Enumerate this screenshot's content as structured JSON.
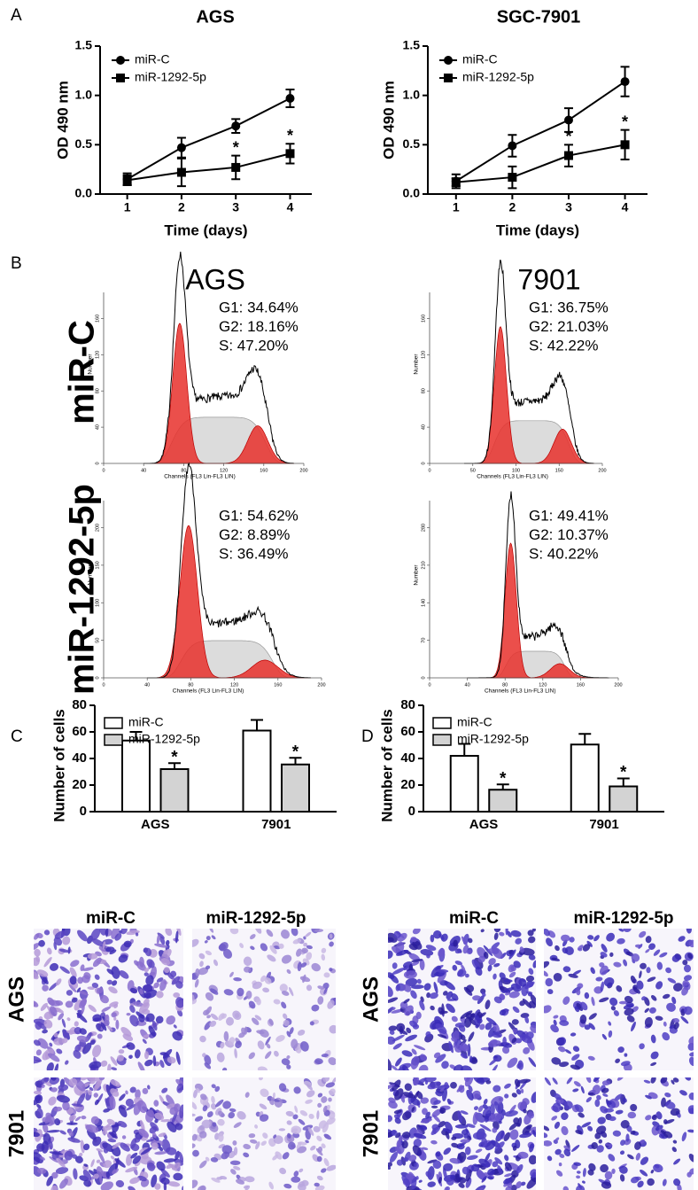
{
  "panel_labels": [
    "A",
    "B",
    "C",
    "D"
  ],
  "chart_data": [
    {
      "type": "line",
      "title": "AGS",
      "xlabel": "Time (days)",
      "ylabel": "OD 490 nm",
      "x": [
        1,
        2,
        3,
        4
      ],
      "xlim": [
        0.5,
        4.4
      ],
      "xticks": [
        1,
        2,
        3,
        4
      ],
      "ylim": [
        0,
        1.5
      ],
      "yticks": [
        {
          "value": 0,
          "label": "0.0"
        },
        0.5,
        {
          "value": 1,
          "label": "1.0"
        },
        {
          "value": 1.5,
          "label": "1.5"
        }
      ],
      "series": [
        {
          "name": "miR-C",
          "color": "#000000",
          "marker": "circle",
          "values": [
            0.15,
            0.47,
            0.69,
            0.97
          ],
          "errors": [
            0.06,
            0.1,
            0.07,
            0.09
          ]
        },
        {
          "name": "miR-1292-5p",
          "color": "#000000",
          "marker": "square",
          "values": [
            0.14,
            0.22,
            0.27,
            0.41
          ],
          "errors": [
            0.05,
            0.14,
            0.12,
            0.1
          ],
          "significance": [
            null,
            null,
            "*",
            "*"
          ]
        }
      ]
    },
    {
      "type": "line",
      "title": "SGC-7901",
      "xlabel": "Time (days)",
      "ylabel": "OD 490 nm",
      "x": [
        1,
        2,
        3,
        4
      ],
      "xlim": [
        0.5,
        4.4
      ],
      "xticks": [
        1,
        2,
        3,
        4
      ],
      "ylim": [
        0,
        1.5
      ],
      "yticks": [
        {
          "value": 0,
          "label": "0.0"
        },
        0.5,
        {
          "value": 1,
          "label": "1.0"
        },
        {
          "value": 1.5,
          "label": "1.5"
        }
      ],
      "series": [
        {
          "name": "miR-C",
          "color": "#000000",
          "marker": "circle",
          "values": [
            0.13,
            0.49,
            0.75,
            1.14
          ],
          "errors": [
            0.07,
            0.11,
            0.12,
            0.15
          ]
        },
        {
          "name": "miR-1292-5p",
          "color": "#000000",
          "marker": "square",
          "values": [
            0.12,
            0.17,
            0.39,
            0.5
          ],
          "errors": [
            0.04,
            0.11,
            0.11,
            0.15
          ],
          "significance": [
            null,
            null,
            "*",
            "*"
          ]
        }
      ]
    },
    {
      "type": "bar",
      "ylabel": "Number of cells",
      "categories": [
        "AGS",
        "7901"
      ],
      "ylim": [
        0,
        80
      ],
      "yticks": [
        0,
        20,
        40,
        60,
        80
      ],
      "series": [
        {
          "name": "miR-C",
          "color": "#ffffff",
          "values": [
            53.5,
            61
          ],
          "errors": [
            6.5,
            8
          ]
        },
        {
          "name": "miR-1292-5p",
          "color": "#d3d3d3",
          "values": [
            32,
            35.5
          ],
          "errors": [
            4.5,
            5
          ],
          "significance": [
            "*",
            "*"
          ]
        }
      ]
    },
    {
      "type": "bar",
      "ylabel": "Number of cells",
      "categories": [
        "AGS",
        "7901"
      ],
      "ylim": [
        0,
        80
      ],
      "yticks": [
        0,
        20,
        40,
        60,
        80
      ],
      "series": [
        {
          "name": "miR-C",
          "color": "#ffffff",
          "values": [
            42,
            50.5
          ],
          "errors": [
            9,
            8
          ]
        },
        {
          "name": "miR-1292-5p",
          "color": "#d3d3d3",
          "values": [
            16.5,
            19
          ],
          "errors": [
            4,
            6
          ],
          "significance": [
            "*",
            "*"
          ]
        }
      ]
    }
  ],
  "flow": {
    "titles": [
      "AGS",
      "7901"
    ],
    "rows": [
      "miR-C",
      "miR-1292-5p"
    ],
    "xlabel": "Channels (FL3 Lin-FL3 LIN)",
    "ylabel": "Number",
    "panels": [
      {
        "stats": [
          "G1: 34.64%",
          "G2: 18.16%",
          "S: 47.20%"
        ],
        "xticks": [
          0,
          40,
          80,
          120,
          160,
          200
        ],
        "yticks": [
          0,
          40,
          80,
          120,
          160
        ]
      },
      {
        "stats": [
          "G1: 36.75%",
          "G2: 21.03%",
          "S: 42.22%"
        ],
        "xticks": [
          0,
          50,
          100,
          150,
          200
        ],
        "yticks": [
          0,
          40,
          80,
          120,
          160
        ]
      },
      {
        "stats": [
          "G1: 54.62%",
          "G2: 8.89%",
          "S: 36.49%"
        ],
        "xticks": [
          0,
          40,
          80,
          120,
          160,
          200
        ],
        "yticks": [
          0,
          50,
          100,
          150,
          200
        ]
      },
      {
        "stats": [
          "G1: 49.41%",
          "G2: 10.37%",
          "S: 40.22%"
        ],
        "xticks": [
          0,
          40,
          80,
          120,
          160,
          200
        ],
        "yticks": [
          0,
          70,
          140,
          210,
          280
        ]
      }
    ]
  },
  "micrographs": [
    {
      "columns": [
        "miR-C",
        "miR-1292-5p"
      ],
      "rows": [
        "AGS",
        "7901"
      ]
    },
    {
      "columns": [
        "miR-C",
        "miR-1292-5p"
      ],
      "rows": [
        "AGS",
        "7901"
      ]
    }
  ]
}
